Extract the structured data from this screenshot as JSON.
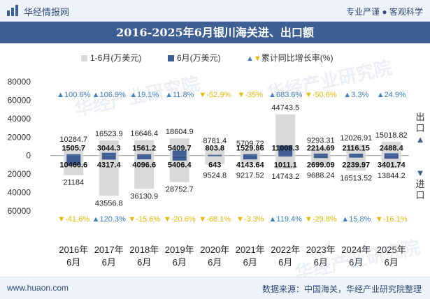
{
  "header": {
    "brand": "华经情报网",
    "slogan": "专业严谨 ● 客观科学"
  },
  "footer": {
    "url": "www.huaon.com",
    "source": "数据来源：中国海关，华经产业研究院整理"
  },
  "side_labels": {
    "export": "出口",
    "import": "进口",
    "export_arrow": "▲",
    "import_arrow": "▼"
  },
  "watermarks": [
    "华经产业研究院",
    "华经产业研究院",
    "华经产业研究院"
  ],
  "legend": {
    "cumulative": "1-6月(万美元)",
    "monthly": "6月(万美元)",
    "growth_prefix": "▲▼",
    "growth": "累计同比增长率(%)"
  },
  "colors": {
    "cumulative_bar": "#d9d9d9",
    "monthly_bar": "#3e5e93",
    "up": "#3a7fbf",
    "down": "#e6b800",
    "title_bg": "#3d5f93"
  },
  "chart_data": {
    "type": "bar",
    "title": "2016-2025年6月银川海关进、出口额",
    "categories": [
      "2016年\n6月",
      "2017年\n6月",
      "2018年\n6月",
      "2019年\n6月",
      "2020年\n6月",
      "2021年\n6月",
      "2022年\n6月",
      "2023年\n6月",
      "2024年\n6月",
      "2025年\n6月"
    ],
    "ylim": [
      -60000,
      80000
    ],
    "yticks": [
      -60000,
      -40000,
      -20000,
      0,
      20000,
      40000,
      60000,
      80000
    ],
    "ytick_labels": [
      "60000",
      "40000",
      "20000",
      "0",
      "20000",
      "40000",
      "60000",
      "80000"
    ],
    "export": {
      "cumulative": [
        10284.7,
        16523.9,
        16646.4,
        18604.9,
        8781.4,
        5709.72,
        44743.5,
        9293.31,
        12026.91,
        15018.82
      ],
      "cumulative_labels": [
        "10284.7",
        "16523.9",
        "16646.4",
        "18604.9",
        "8781.4",
        "5709.72",
        "44743.5",
        "9293.31",
        "12026.91",
        "15018.82"
      ],
      "monthly": [
        1505.7,
        3044.3,
        1561.2,
        5409.7,
        803.8,
        1529.86,
        11008.3,
        2214.69,
        2116.15,
        2488.4
      ],
      "monthly_labels": [
        "1505.7",
        "3044.3",
        "1561.2",
        "5409.7",
        "803.8",
        "1529.86",
        "11008.3",
        "2214.69",
        "2116.15",
        "2488.4"
      ],
      "growth": [
        100.6,
        106.9,
        19.1,
        11.8,
        -52.9,
        -35,
        683.6,
        -50.6,
        3.3,
        24.9
      ],
      "growth_labels": [
        "▲100.6%",
        "▲106.9%",
        "▲19.1%",
        "▲11.8%",
        "▼-52.9%",
        "▼-35%",
        "▲683.6%",
        "▼-50.6%",
        "▲3.3%",
        "▲24.9%"
      ]
    },
    "import": {
      "cumulative": [
        21184,
        43556.8,
        36130.9,
        28752.7,
        9524.8,
        9217.52,
        14743.2,
        9688.24,
        16513.52,
        13844.2
      ],
      "cumulative_labels": [
        "21184",
        "43556.8",
        "36130.9",
        "28752.7",
        "9524.8",
        "9217.52",
        "14743.2",
        "9688.24",
        "16513.52",
        "13844.2"
      ],
      "monthly": [
        10460.6,
        4317.4,
        4096.6,
        5406.4,
        643,
        4143.64,
        1011.1,
        2699.09,
        2239.97,
        3401.74
      ],
      "monthly_labels": [
        "10460.6",
        "4317.4",
        "4096.6",
        "5406.4",
        "643",
        "4143.64",
        "1011.1",
        "2699.09",
        "2239.97",
        "3401.74"
      ],
      "growth": [
        -41.6,
        120.3,
        -15.6,
        -20.6,
        -68.1,
        -3.3,
        119.4,
        -29.8,
        15.8,
        -16.1
      ],
      "growth_labels": [
        "▼-41.6%",
        "▲120.3%",
        "▼-15.6%",
        "▼-20.6%",
        "▼-68.1%",
        "▼-3.3%",
        "▲119.4%",
        "▼-29.8%",
        "▲15.8%",
        "▼-16.1%"
      ]
    }
  }
}
